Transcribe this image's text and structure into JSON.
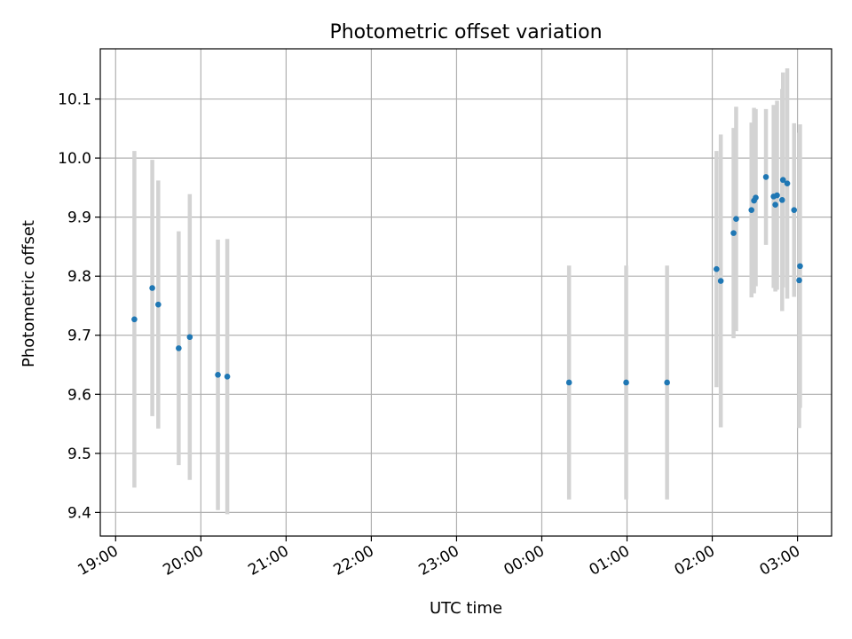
{
  "chart_data": {
    "type": "scatter",
    "title": "Photometric offset variation",
    "xlabel": "UTC time",
    "ylabel": "Photometric offset",
    "x_unit": "hours (UTC, continuing past midnight)",
    "xlim": [
      18.82,
      27.4
    ],
    "ylim": [
      9.36,
      10.185
    ],
    "grid": true,
    "x_ticks": [
      {
        "value": 19,
        "label": "19:00"
      },
      {
        "value": 20,
        "label": "20:00"
      },
      {
        "value": 21,
        "label": "21:00"
      },
      {
        "value": 22,
        "label": "22:00"
      },
      {
        "value": 23,
        "label": "23:00"
      },
      {
        "value": 24,
        "label": "00:00"
      },
      {
        "value": 25,
        "label": "01:00"
      },
      {
        "value": 26,
        "label": "02:00"
      },
      {
        "value": 27,
        "label": "03:00"
      }
    ],
    "y_ticks": [
      {
        "value": 9.4,
        "label": "9.4"
      },
      {
        "value": 9.5,
        "label": "9.5"
      },
      {
        "value": 9.6,
        "label": "9.6"
      },
      {
        "value": 9.7,
        "label": "9.7"
      },
      {
        "value": 9.8,
        "label": "9.8"
      },
      {
        "value": 9.9,
        "label": "9.9"
      },
      {
        "value": 10.0,
        "label": "10.0"
      },
      {
        "value": 10.1,
        "label": "10.1"
      }
    ],
    "colors": {
      "points": "#1f77b4",
      "errorbars": "#d3d3d3",
      "grid": "#b0b0b0"
    },
    "points": [
      {
        "x": 19.22,
        "y": 9.727,
        "err": 0.285
      },
      {
        "x": 19.43,
        "y": 9.78,
        "err": 0.217
      },
      {
        "x": 19.5,
        "y": 9.752,
        "err": 0.21
      },
      {
        "x": 19.74,
        "y": 9.678,
        "err": 0.198
      },
      {
        "x": 19.87,
        "y": 9.697,
        "err": 0.242
      },
      {
        "x": 20.2,
        "y": 9.633,
        "err": 0.229
      },
      {
        "x": 20.31,
        "y": 9.63,
        "err": 0.233
      },
      {
        "x": 24.32,
        "y": 9.62,
        "err": 0.198
      },
      {
        "x": 24.99,
        "y": 9.62,
        "err": 0.198
      },
      {
        "x": 25.47,
        "y": 9.62,
        "err": 0.198
      },
      {
        "x": 26.05,
        "y": 9.812,
        "err": 0.2
      },
      {
        "x": 26.1,
        "y": 9.792,
        "err": 0.248
      },
      {
        "x": 26.25,
        "y": 9.873,
        "err": 0.178
      },
      {
        "x": 26.28,
        "y": 9.897,
        "err": 0.19
      },
      {
        "x": 26.46,
        "y": 9.912,
        "err": 0.148
      },
      {
        "x": 26.49,
        "y": 9.928,
        "err": 0.157
      },
      {
        "x": 26.51,
        "y": 9.933,
        "err": 0.15
      },
      {
        "x": 26.63,
        "y": 9.968,
        "err": 0.115
      },
      {
        "x": 26.72,
        "y": 9.935,
        "err": 0.155
      },
      {
        "x": 26.74,
        "y": 9.921,
        "err": 0.147
      },
      {
        "x": 26.76,
        "y": 9.937,
        "err": 0.16
      },
      {
        "x": 26.82,
        "y": 9.929,
        "err": 0.188
      },
      {
        "x": 26.83,
        "y": 9.963,
        "err": 0.182
      },
      {
        "x": 26.88,
        "y": 9.957,
        "err": 0.195
      },
      {
        "x": 26.96,
        "y": 9.912,
        "err": 0.147
      },
      {
        "x": 27.02,
        "y": 9.793,
        "err": 0.25
      },
      {
        "x": 27.03,
        "y": 9.817,
        "err": 0.24
      }
    ]
  }
}
